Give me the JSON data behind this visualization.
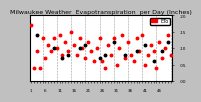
{
  "title": "Milwaukee Weather  Evapotranspiration  per Day (Inches)",
  "bg_color": "#c0c0c0",
  "plot_bg": "#ffffff",
  "border_color": "#000000",
  "line_color": "#ff0000",
  "dot_color": "#ff0000",
  "black_dot_color": "#000000",
  "grid_color": "#999999",
  "y_values": [
    0.17,
    0.04,
    0.09,
    0.04,
    0.13,
    0.07,
    0.11,
    0.09,
    0.13,
    0.1,
    0.14,
    0.08,
    0.12,
    0.09,
    0.15,
    0.11,
    0.08,
    0.13,
    0.1,
    0.07,
    0.12,
    0.09,
    0.06,
    0.1,
    0.13,
    0.06,
    0.04,
    0.11,
    0.08,
    0.13,
    0.05,
    0.1,
    0.14,
    0.07,
    0.12,
    0.08,
    0.06,
    0.13,
    0.09,
    0.14,
    0.05,
    0.08,
    0.11,
    0.09,
    0.04,
    0.12,
    0.07,
    0.1,
    0.14,
    0.08
  ],
  "black_y_values": [
    0.14,
    0.1,
    0.08,
    0.11,
    0.07,
    0.12,
    0.08,
    0.09,
    0.11,
    0.06,
    0.09,
    0.12,
    0.07,
    0.1,
    0.08
  ],
  "black_x_values": [
    2,
    8,
    13,
    19,
    24,
    29,
    33,
    37,
    40,
    43,
    46,
    48,
    11,
    17,
    26
  ],
  "ylim": [
    0.0,
    0.2
  ],
  "yticks": [
    0.0,
    0.05,
    0.1,
    0.15,
    0.2
  ],
  "ytick_labels": [
    ".00",
    ".05",
    ".10",
    ".15",
    ".20"
  ],
  "vgrid_positions": [
    4,
    9,
    14,
    19,
    24,
    29,
    34,
    39,
    44,
    49
  ],
  "legend_label": "ETo",
  "title_fontsize": 4.5,
  "tick_fontsize": 3.0,
  "legend_fontsize": 3.5,
  "marker_size": 1.8,
  "line_width": 0.5
}
